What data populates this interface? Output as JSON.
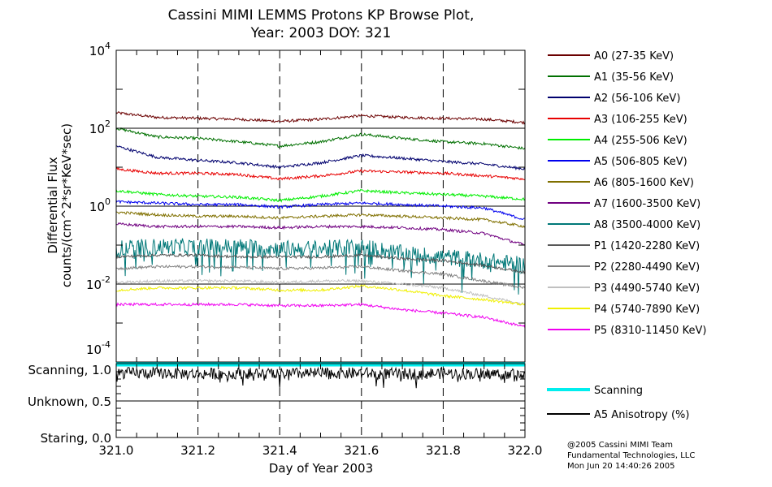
{
  "chart_data": {
    "type": "line",
    "title": [
      "Cassini MIMI LEMMS Protons KP Browse Plot,",
      "Year: 2003 DOY: 321"
    ],
    "xlabel": "Day of Year 2003",
    "ylabel": [
      "Differential Flux",
      "counts/(cm^2*sr*KeV*sec)"
    ],
    "xlim": [
      321.0,
      322.0
    ],
    "xticks": [
      "321.0",
      "321.2",
      "321.4",
      "321.6",
      "321.8",
      "322.0"
    ],
    "ylim": [
      0.0001,
      10000
    ],
    "yscale": "log",
    "yticks": [
      {
        "base": "10",
        "exp": "4"
      },
      {
        "base": "10",
        "exp": "2"
      },
      {
        "base": "10",
        "exp": "0"
      },
      {
        "base": "10",
        "exp": "-2"
      },
      {
        "base": "10",
        "exp": "-4"
      }
    ],
    "x": [
      321.0,
      321.1,
      321.2,
      321.3,
      321.4,
      321.5,
      321.6,
      321.7,
      321.8,
      321.9,
      322.0
    ],
    "series": [
      {
        "name": "A0 (27-35 KeV)",
        "color": "#6b0000",
        "values": [
          250,
          190,
          180,
          170,
          150,
          170,
          210,
          190,
          180,
          170,
          140
        ]
      },
      {
        "name": "A1 (35-56 KeV)",
        "color": "#007000",
        "values": [
          100,
          60,
          55,
          45,
          35,
          45,
          70,
          55,
          45,
          40,
          30
        ]
      },
      {
        "name": "A2 (56-106 KeV)",
        "color": "#00006e",
        "values": [
          35,
          18,
          15,
          13,
          10,
          13,
          20,
          17,
          14,
          12,
          9
        ]
      },
      {
        "name": "A3 (106-255 KeV)",
        "color": "#e80000",
        "values": [
          9,
          7,
          7,
          6.5,
          5,
          6,
          8,
          7.5,
          7,
          6,
          5
        ]
      },
      {
        "name": "A4 (255-506 KeV)",
        "color": "#00ee00",
        "values": [
          2.5,
          2,
          1.8,
          1.7,
          1.4,
          1.8,
          2.5,
          2.2,
          2,
          1.8,
          1.5
        ]
      },
      {
        "name": "A5 (506-805 KeV)",
        "color": "#0000ee",
        "values": [
          1.3,
          1.2,
          1.1,
          1.1,
          0.95,
          1.1,
          1.2,
          1.1,
          1.0,
          0.9,
          0.45
        ]
      },
      {
        "name": "A6 (805-1600 KeV)",
        "color": "#807000",
        "values": [
          0.7,
          0.6,
          0.55,
          0.55,
          0.5,
          0.55,
          0.6,
          0.55,
          0.5,
          0.45,
          0.3
        ]
      },
      {
        "name": "A7 (1600-3500 KeV)",
        "color": "#700080",
        "values": [
          0.35,
          0.3,
          0.3,
          0.3,
          0.28,
          0.3,
          0.3,
          0.28,
          0.25,
          0.2,
          0.1
        ]
      },
      {
        "name": "A8 (3500-4000 KeV)",
        "color": "#007878",
        "values": [
          0.08,
          0.09,
          0.09,
          0.09,
          0.08,
          0.08,
          0.09,
          0.06,
          0.05,
          0.04,
          0.03
        ],
        "noisy": true
      },
      {
        "name": "P1 (1420-2280 KeV)",
        "color": "#585858",
        "values": [
          0.05,
          0.055,
          0.055,
          0.05,
          0.05,
          0.05,
          0.055,
          0.045,
          0.04,
          0.03,
          0.02
        ]
      },
      {
        "name": "P2 (2280-4490 KeV)",
        "color": "#808080",
        "values": [
          0.025,
          0.028,
          0.028,
          0.027,
          0.025,
          0.026,
          0.028,
          0.022,
          0.018,
          0.012,
          0.008
        ]
      },
      {
        "name": "P3 (4490-5740 KeV)",
        "color": "#c0c0c0",
        "values": [
          0.011,
          0.012,
          0.012,
          0.012,
          0.011,
          0.012,
          0.012,
          0.01,
          0.008,
          0.005,
          0.003
        ]
      },
      {
        "name": "P4 (5740-7890 KeV)",
        "color": "#f0f000",
        "values": [
          0.007,
          0.008,
          0.008,
          0.008,
          0.007,
          0.007,
          0.009,
          0.007,
          0.005,
          0.004,
          0.003
        ]
      },
      {
        "name": "P5 (8310-11450 KeV)",
        "color": "#f000f0",
        "values": [
          0.003,
          0.003,
          0.003,
          0.003,
          0.0028,
          0.0028,
          0.003,
          0.0022,
          0.0018,
          0.0014,
          0.0008
        ]
      }
    ],
    "lower_panel": {
      "ylim": [
        0.0,
        1.0
      ],
      "yticks": [
        "Staring, 0.0",
        "Unknown, 0.5",
        "Scanning, 1.0"
      ],
      "series": [
        {
          "name": "Scanning",
          "color": "#00eeee",
          "values": [
            1,
            1,
            1,
            1,
            1,
            1,
            1,
            1,
            1,
            1,
            1
          ]
        },
        {
          "name": "A5 Anisotropy (%)",
          "color": "#000000",
          "values": [
            0.88,
            0.88,
            0.87,
            0.88,
            0.87,
            0.88,
            0.88,
            0.87,
            0.88,
            0.87,
            0.88
          ],
          "noisy": true
        }
      ]
    }
  },
  "footer": [
    "@2005 Cassini MIMI Team",
    "Fundamental Technologies, LLC",
    "Mon Jun 20 14:40:26 2005"
  ]
}
